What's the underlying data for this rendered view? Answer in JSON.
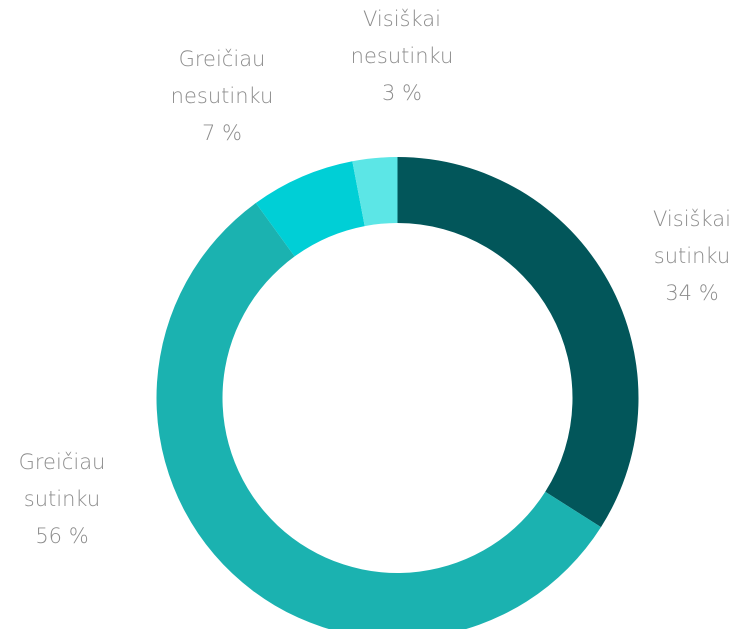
{
  "chart_data": {
    "type": "donut",
    "categories": [
      "Visiškai sutinku",
      "Greičiau sutinku",
      "Greičiau nesutinku",
      "Visiškai nesutinku"
    ],
    "values": [
      34,
      56,
      7,
      3
    ],
    "value_labels": [
      "34 %",
      "56 %",
      "7 %",
      "3 %"
    ],
    "colors": [
      "#02565a",
      "#1bb2b0",
      "#00cfd6",
      "#5ce6e6"
    ]
  }
}
